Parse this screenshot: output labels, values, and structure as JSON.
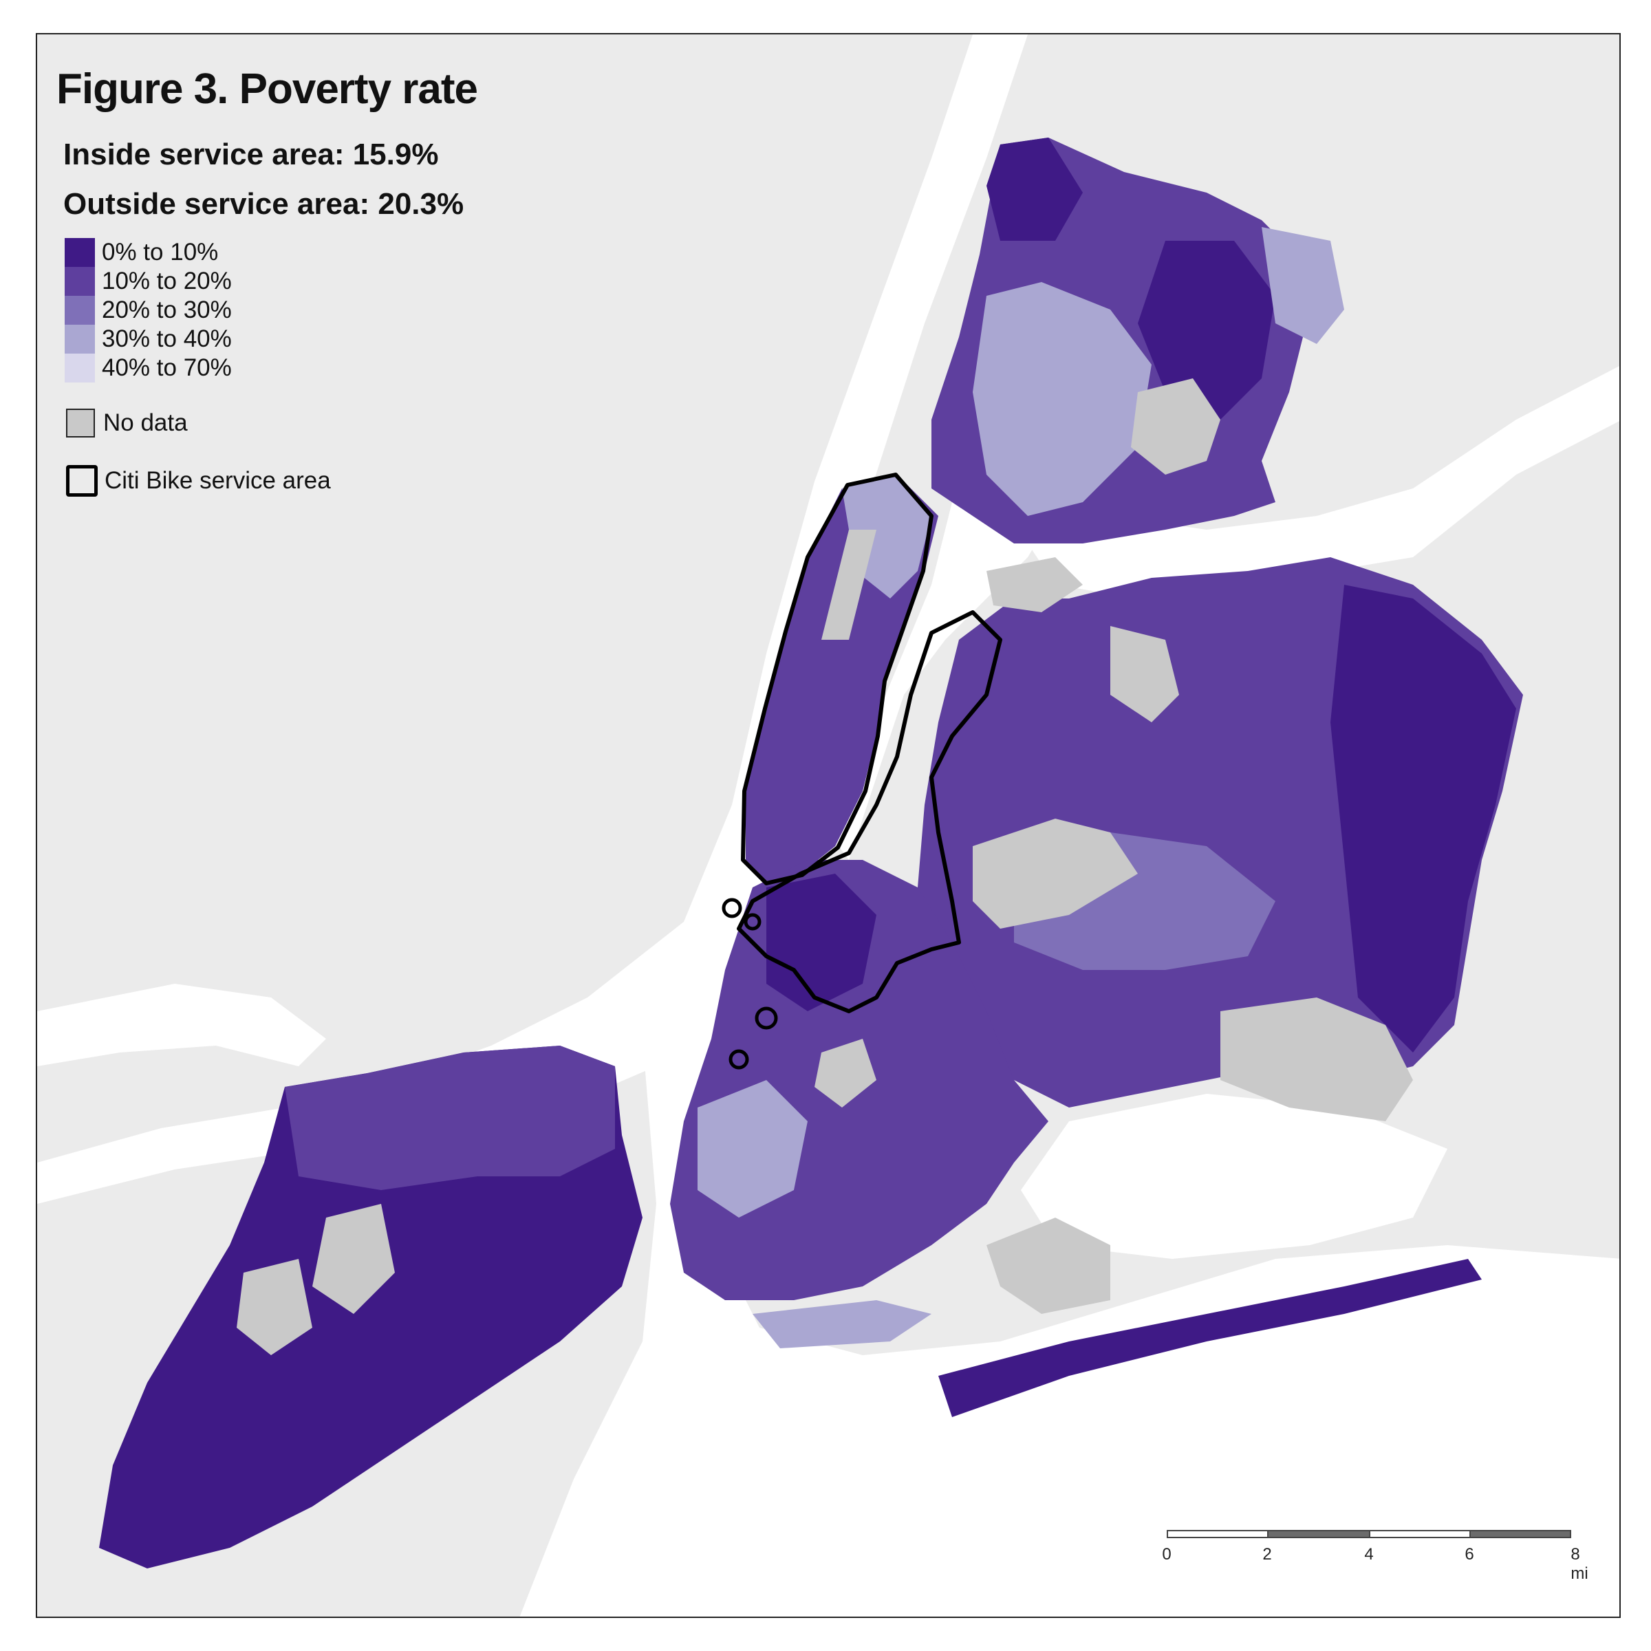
{
  "title": "Figure 3. Poverty rate",
  "stats": {
    "inside": "Inside service area: 15.9%",
    "outside": "Outside service area: 20.3%"
  },
  "legend": {
    "classes": [
      {
        "label": "0% to 10%",
        "color": "#3f1a86"
      },
      {
        "label": "10% to 20%",
        "color": "#5e3f9e"
      },
      {
        "label": "20% to 30%",
        "color": "#7f70b8"
      },
      {
        "label": "30% to 40%",
        "color": "#aaa7d2"
      },
      {
        "label": "40% to 70%",
        "color": "#d9d7ec"
      }
    ],
    "no_data": {
      "label": "No data",
      "color": "#c9c9c9"
    },
    "service_area": {
      "label": "Citi Bike service area"
    }
  },
  "scalebar": {
    "ticks": [
      "0",
      "2",
      "4",
      "6",
      "8 mi"
    ]
  },
  "colors": {
    "land_background": "#ebebeb",
    "water": "#ffffff",
    "no_data": "#c9c9c9",
    "outline": "#000000"
  }
}
